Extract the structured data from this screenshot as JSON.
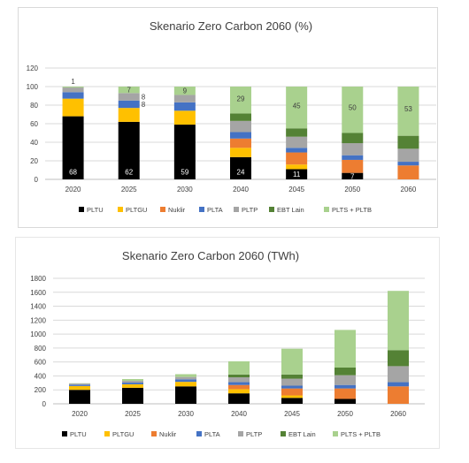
{
  "series_colors": {
    "PLTU": "#000000",
    "PLTGU": "#ffc000",
    "Nuklir": "#ed7d31",
    "PLTA": "#4472c4",
    "PLTP": "#a5a5a5",
    "EBT Lain": "#548235",
    "PLTS + PLTB": "#a9d18e"
  },
  "chart_data": [
    {
      "type": "bar",
      "stacked": true,
      "title": "Skenario Zero Carbon 2060 (%)",
      "categories": [
        "2020",
        "2025",
        "2030",
        "2040",
        "2045",
        "2050",
        "2060"
      ],
      "ylim": [
        0,
        120
      ],
      "yticks": [
        "0",
        "20",
        "40",
        "60",
        "80",
        "100",
        "120"
      ],
      "grid": true,
      "legend": "bottom",
      "series": [
        {
          "name": "PLTU",
          "values": [
            68,
            62,
            59,
            24,
            11,
            7,
            0
          ]
        },
        {
          "name": "PLTGU",
          "values": [
            19,
            15,
            15,
            10,
            5,
            0,
            0
          ]
        },
        {
          "name": "Nuklir",
          "values": [
            0,
            0,
            0,
            10,
            13,
            14,
            15
          ]
        },
        {
          "name": "PLTA",
          "values": [
            7,
            8,
            9,
            7,
            5,
            5,
            4
          ]
        },
        {
          "name": "PLTP",
          "values": [
            5,
            8,
            8,
            12,
            12,
            13,
            14
          ]
        },
        {
          "name": "EBT Lain",
          "values": [
            0,
            0,
            0,
            8,
            9,
            11,
            14
          ]
        },
        {
          "name": "PLTS + PLTB",
          "values": [
            1,
            7,
            9,
            29,
            45,
            50,
            53
          ]
        }
      ],
      "data_labels": [
        {
          "category": "2020",
          "series": "PLTU",
          "text": "68"
        },
        {
          "category": "2025",
          "series": "PLTU",
          "text": "62"
        },
        {
          "category": "2030",
          "series": "PLTU",
          "text": "59"
        },
        {
          "category": "2040",
          "series": "PLTU",
          "text": "24"
        },
        {
          "category": "2045",
          "series": "PLTU",
          "text": "11"
        },
        {
          "category": "2050",
          "series": "PLTU",
          "text": "7"
        },
        {
          "category": "2020",
          "series": "PLTS + PLTB",
          "text": "1"
        },
        {
          "category": "2025",
          "series": "PLTS + PLTB",
          "text": "7"
        },
        {
          "category": "2030",
          "series": "PLTS + PLTB",
          "text": "9"
        },
        {
          "category": "2040",
          "series": "PLTS + PLTB",
          "text": "29"
        },
        {
          "category": "2045",
          "series": "PLTS + PLTB",
          "text": "45"
        },
        {
          "category": "2050",
          "series": "PLTS + PLTB",
          "text": "50"
        },
        {
          "category": "2060",
          "series": "PLTS + PLTB",
          "text": "53"
        },
        {
          "category": "2025",
          "series": "PLTP",
          "text": "8"
        },
        {
          "category": "2025",
          "series": "PLTA",
          "text": "8"
        }
      ]
    },
    {
      "type": "bar",
      "stacked": true,
      "title": "Skenario Zero Carbon 2060 (TWh)",
      "categories": [
        "2020",
        "2025",
        "2030",
        "2040",
        "2045",
        "2050",
        "2060"
      ],
      "ylim": [
        0,
        1800
      ],
      "yticks": [
        "0",
        "200",
        "400",
        "600",
        "800",
        "1000",
        "1200",
        "1400",
        "1600",
        "1800"
      ],
      "grid": true,
      "legend": "bottom",
      "series": [
        {
          "name": "PLTU",
          "values": [
            200,
            230,
            250,
            150,
            85,
            70,
            0
          ]
        },
        {
          "name": "PLTGU",
          "values": [
            55,
            50,
            65,
            60,
            35,
            0,
            0
          ]
        },
        {
          "name": "Nuklir",
          "values": [
            0,
            0,
            0,
            60,
            100,
            150,
            250
          ]
        },
        {
          "name": "PLTA",
          "values": [
            20,
            25,
            35,
            40,
            40,
            50,
            60
          ]
        },
        {
          "name": "PLTP",
          "values": [
            15,
            25,
            35,
            70,
            100,
            140,
            230
          ]
        },
        {
          "name": "EBT Lain",
          "values": [
            0,
            0,
            0,
            40,
            60,
            110,
            230
          ]
        },
        {
          "name": "PLTS + PLTB",
          "values": [
            5,
            25,
            40,
            190,
            370,
            540,
            850
          ]
        }
      ]
    }
  ]
}
